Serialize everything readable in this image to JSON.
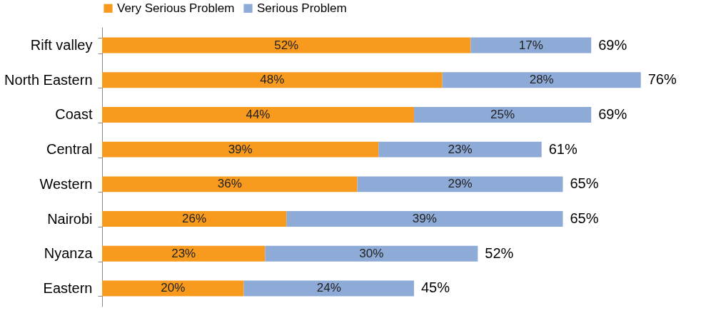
{
  "chart_data": {
    "type": "bar",
    "orientation": "horizontal",
    "stacked": true,
    "legend": "top",
    "categories": [
      "Rift valley",
      "North Eastern",
      "Coast",
      "Central",
      "Western",
      "Nairobi",
      "Nyanza",
      "Eastern"
    ],
    "series": [
      {
        "name": "Very Serious Problem",
        "color": "#f79a1e",
        "values": [
          52,
          48,
          44,
          39,
          36,
          26,
          23,
          20
        ],
        "value_labels": [
          "52%",
          "48%",
          "44%",
          "39%",
          "36%",
          "26%",
          "23%",
          "20%"
        ]
      },
      {
        "name": "Serious Problem",
        "color": "#8eaad6",
        "values": [
          17,
          28,
          25,
          23,
          29,
          39,
          30,
          24
        ],
        "value_labels": [
          "17%",
          "28%",
          "25%",
          "23%",
          "29%",
          "39%",
          "30%",
          "24%"
        ]
      }
    ],
    "totals": [
      "69%",
      "76%",
      "69%",
      "61%",
      "65%",
      "65%",
      "52%",
      "45%"
    ]
  }
}
